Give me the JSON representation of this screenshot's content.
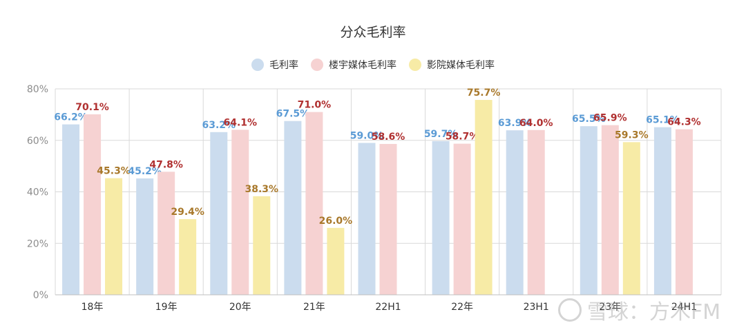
{
  "chart_data": {
    "type": "bar",
    "title": "分众毛利率",
    "categories": [
      "18年",
      "19年",
      "20年",
      "21年",
      "22H1",
      "22年",
      "23H1",
      "23年",
      "24H1"
    ],
    "series": [
      {
        "name": "毛利率",
        "color": "#cbdcee",
        "label_color": "#5b9bd5",
        "values": [
          66.2,
          45.2,
          63.2,
          67.5,
          59.0,
          59.7,
          63.9,
          65.5,
          65.1
        ],
        "labels": [
          "66.2%",
          "45.2%",
          "63.2%",
          "67.5%",
          "59.0%",
          "59.7%",
          "63.9%",
          "65.5%",
          "65.1%"
        ]
      },
      {
        "name": "楼宇媒体毛利率",
        "color": "#f6d2d2",
        "label_color": "#b03030",
        "values": [
          70.1,
          47.8,
          64.1,
          71.0,
          58.6,
          58.7,
          64.0,
          65.9,
          64.3
        ],
        "labels": [
          "70.1%",
          "47.8%",
          "64.1%",
          "71.0%",
          "58.6%",
          "58.7%",
          "64.0%",
          "65.9%",
          "64.3%"
        ]
      },
      {
        "name": "影院媒体毛利率",
        "color": "#f7eba6",
        "label_color": "#a8782a",
        "values": [
          45.3,
          29.4,
          38.3,
          26.0,
          null,
          75.7,
          null,
          59.3,
          null
        ],
        "labels": [
          "45.3%",
          "29.4%",
          "38.3%",
          "26.0%",
          null,
          "75.7%",
          null,
          "59.3%",
          null
        ]
      }
    ],
    "ylim": [
      0,
      80
    ],
    "yticks": [
      "0%",
      "20%",
      "40%",
      "60%",
      "80%"
    ],
    "grid": true,
    "legend_position": "top-center"
  },
  "watermark": {
    "text": "雪球：方木FM"
  }
}
